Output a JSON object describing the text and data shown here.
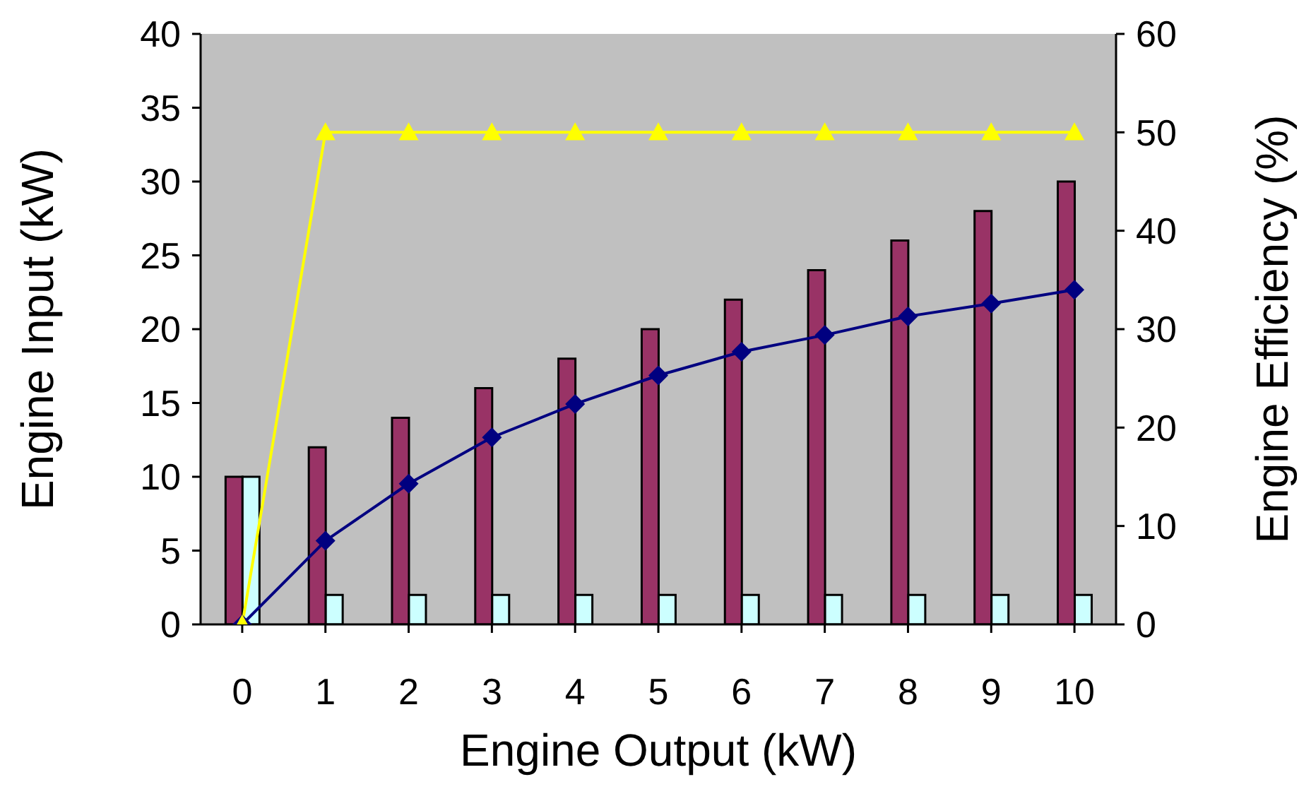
{
  "chart_data": {
    "type": "bar",
    "xlabel": "Engine Output (kW)",
    "ylabel": "Engine Input (kW)",
    "y2label": "Engine Efficiency (%)",
    "categories": [
      "0",
      "1",
      "2",
      "3",
      "4",
      "5",
      "6",
      "7",
      "8",
      "9",
      "10"
    ],
    "series": [
      {
        "color": "#993366",
        "values": [
          10,
          12,
          14,
          16,
          18,
          20,
          22,
          24,
          26,
          28,
          30
        ]
      },
      {
        "color": "#ccffff",
        "values": [
          10,
          2,
          2,
          2,
          2,
          2,
          2,
          2,
          2,
          2,
          2
        ]
      },
      {
        "type": "line",
        "axis": "y2",
        "color": "#000080",
        "marker": "diamond",
        "values": [
          0,
          8.5,
          14.3,
          19,
          22.4,
          25.3,
          27.7,
          29.4,
          31.3,
          32.6,
          34
        ]
      },
      {
        "type": "line",
        "axis": "y2",
        "color": "#ffff00",
        "marker": "triangle",
        "values": [
          0,
          50,
          50,
          50,
          50,
          50,
          50,
          50,
          50,
          50,
          50
        ]
      }
    ],
    "ylim": [
      0,
      40
    ],
    "yticks": [
      0,
      5,
      10,
      15,
      20,
      25,
      30,
      35,
      40
    ],
    "y2lim": [
      0,
      60
    ],
    "y2ticks": [
      0,
      10,
      20,
      30,
      40,
      50,
      60
    ],
    "grid": false,
    "legend": false
  }
}
